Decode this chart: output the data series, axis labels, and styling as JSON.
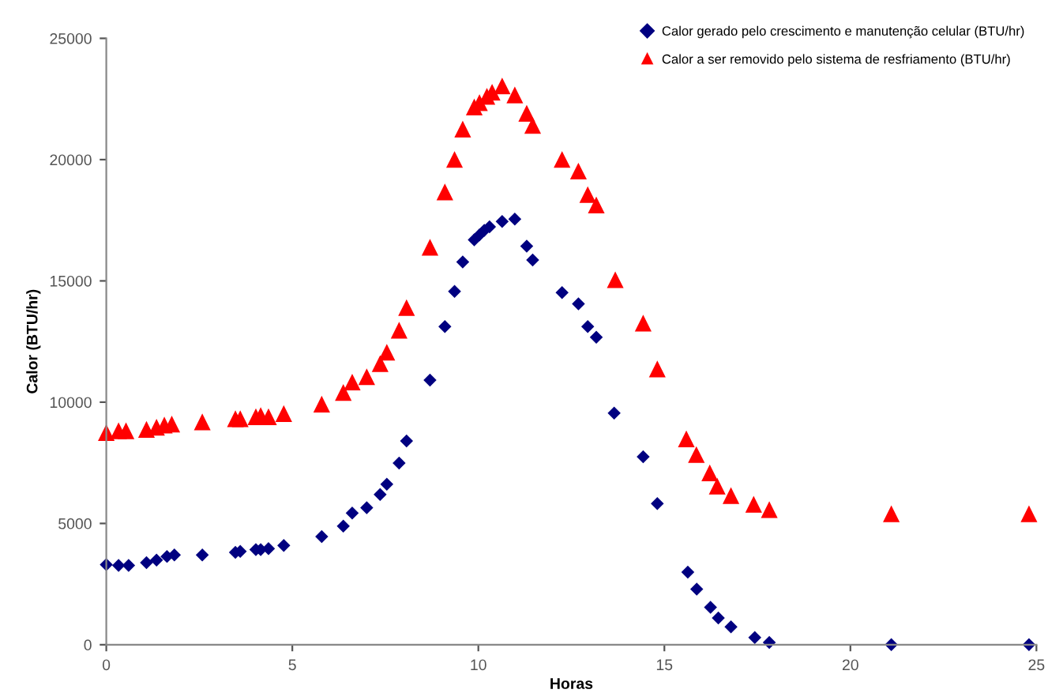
{
  "chart_data": {
    "type": "scatter",
    "xlabel": "Horas",
    "ylabel": "Calor (BTU/hr)",
    "xlim": [
      0,
      25
    ],
    "xticks": [
      0,
      5,
      10,
      15,
      20,
      25
    ],
    "ylim": [
      0,
      25000
    ],
    "yticks": [
      0,
      5000,
      10000,
      15000,
      20000,
      25000
    ],
    "grid": false,
    "legend": "top right",
    "series": [
      {
        "name": "Calor gerado pelo crescimento e manutenção celular (BTU/hr)",
        "color": "#000080",
        "marker": "diamond",
        "x": [
          0,
          0.33,
          0.6,
          1.08,
          1.35,
          1.63,
          1.83,
          2.58,
          3.47,
          3.6,
          4.02,
          4.15,
          4.36,
          4.77,
          5.79,
          6.37,
          6.61,
          7.0,
          7.36,
          7.54,
          7.87,
          8.07,
          8.7,
          9.1,
          9.36,
          9.58,
          9.89,
          10.03,
          10.16,
          10.3,
          10.64,
          10.98,
          11.3,
          11.46,
          12.25,
          12.69,
          12.94,
          13.17,
          13.65,
          14.43,
          14.81,
          15.63,
          15.87,
          16.24,
          16.45,
          16.79,
          17.43,
          17.82,
          21.1,
          24.8
        ],
        "values": [
          3300,
          3270,
          3270,
          3380,
          3490,
          3640,
          3700,
          3700,
          3810,
          3850,
          3920,
          3920,
          3960,
          4090,
          4460,
          4890,
          5430,
          5650,
          6190,
          6620,
          7490,
          8400,
          10910,
          13120,
          14570,
          15780,
          16690,
          16900,
          17080,
          17230,
          17450,
          17550,
          16430,
          15860,
          14520,
          14050,
          13120,
          12680,
          9550,
          7750,
          5820,
          2990,
          2290,
          1540,
          1100,
          740,
          300,
          90,
          0,
          0
        ]
      },
      {
        "name": "Calor a ser removido pelo sistema de resfriamento (BTU/hr)",
        "color": "#ff0000",
        "marker": "triangle",
        "x": [
          0,
          0.33,
          0.53,
          1.08,
          1.35,
          1.56,
          1.76,
          2.58,
          3.47,
          3.6,
          4.02,
          4.15,
          4.36,
          4.77,
          5.79,
          6.37,
          6.61,
          7.0,
          7.36,
          7.54,
          7.87,
          8.07,
          8.7,
          9.1,
          9.36,
          9.58,
          9.89,
          10.03,
          10.23,
          10.37,
          10.64,
          10.98,
          11.3,
          11.46,
          12.25,
          12.69,
          12.94,
          13.17,
          13.68,
          14.43,
          14.81,
          15.59,
          15.86,
          16.22,
          16.42,
          16.79,
          17.4,
          17.82,
          21.1,
          24.8
        ],
        "values": [
          8720,
          8790,
          8790,
          8850,
          8940,
          9030,
          9070,
          9160,
          9290,
          9290,
          9370,
          9420,
          9370,
          9500,
          9890,
          10370,
          10800,
          11020,
          11560,
          12030,
          12940,
          13870,
          16360,
          18640,
          19980,
          21230,
          22140,
          22320,
          22580,
          22750,
          23010,
          22640,
          21880,
          21380,
          19980,
          19500,
          18530,
          18100,
          15020,
          13230,
          11340,
          8460,
          7810,
          7060,
          6510,
          6120,
          5760,
          5540,
          5370,
          5370
        ]
      }
    ]
  }
}
